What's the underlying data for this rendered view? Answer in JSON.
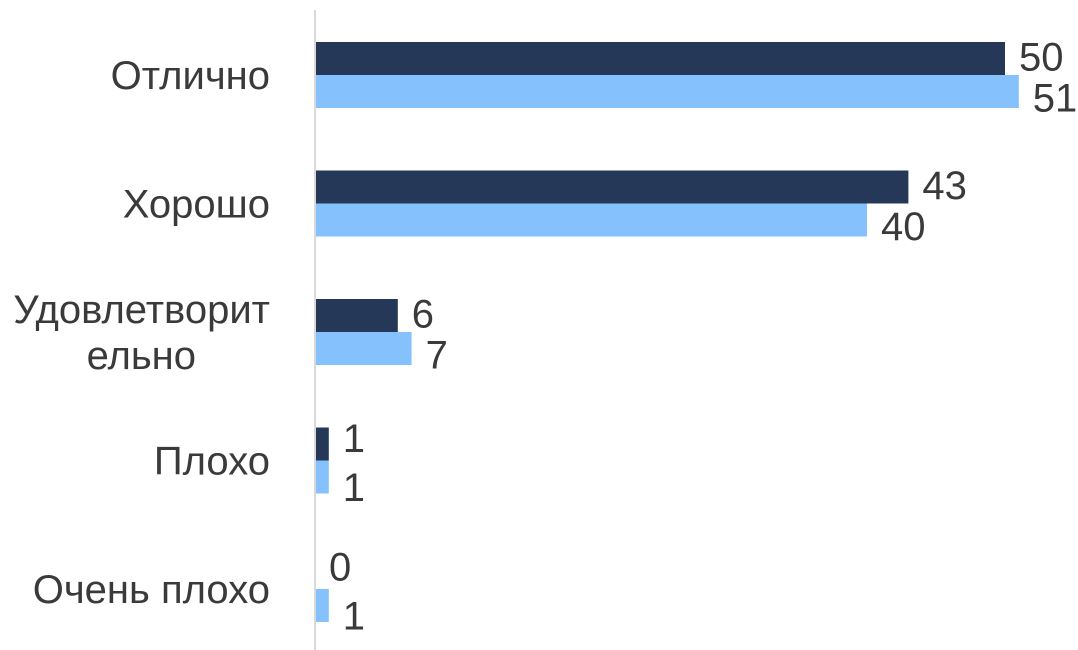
{
  "chart_data": {
    "type": "bar",
    "orientation": "horizontal",
    "categories": [
      "Отлично",
      "Хорошо",
      "Удовлетворительно",
      "Плохо",
      "Очень плохо"
    ],
    "category_display_lines": [
      [
        "Отлично"
      ],
      [
        "Хорошо"
      ],
      [
        "Удовлетворит",
        "ельно"
      ],
      [
        "Плохо"
      ],
      [
        "Очень плохо"
      ]
    ],
    "series": [
      {
        "values": [
          50,
          43,
          6,
          1,
          0
        ],
        "color": "#253858"
      },
      {
        "values": [
          51,
          40,
          7,
          1,
          1
        ],
        "color": "#84c1fd"
      }
    ],
    "xlim": [
      0,
      51
    ],
    "data_labels": true,
    "legend": "none",
    "grid": false,
    "axis_color": "#d9d9d9"
  }
}
